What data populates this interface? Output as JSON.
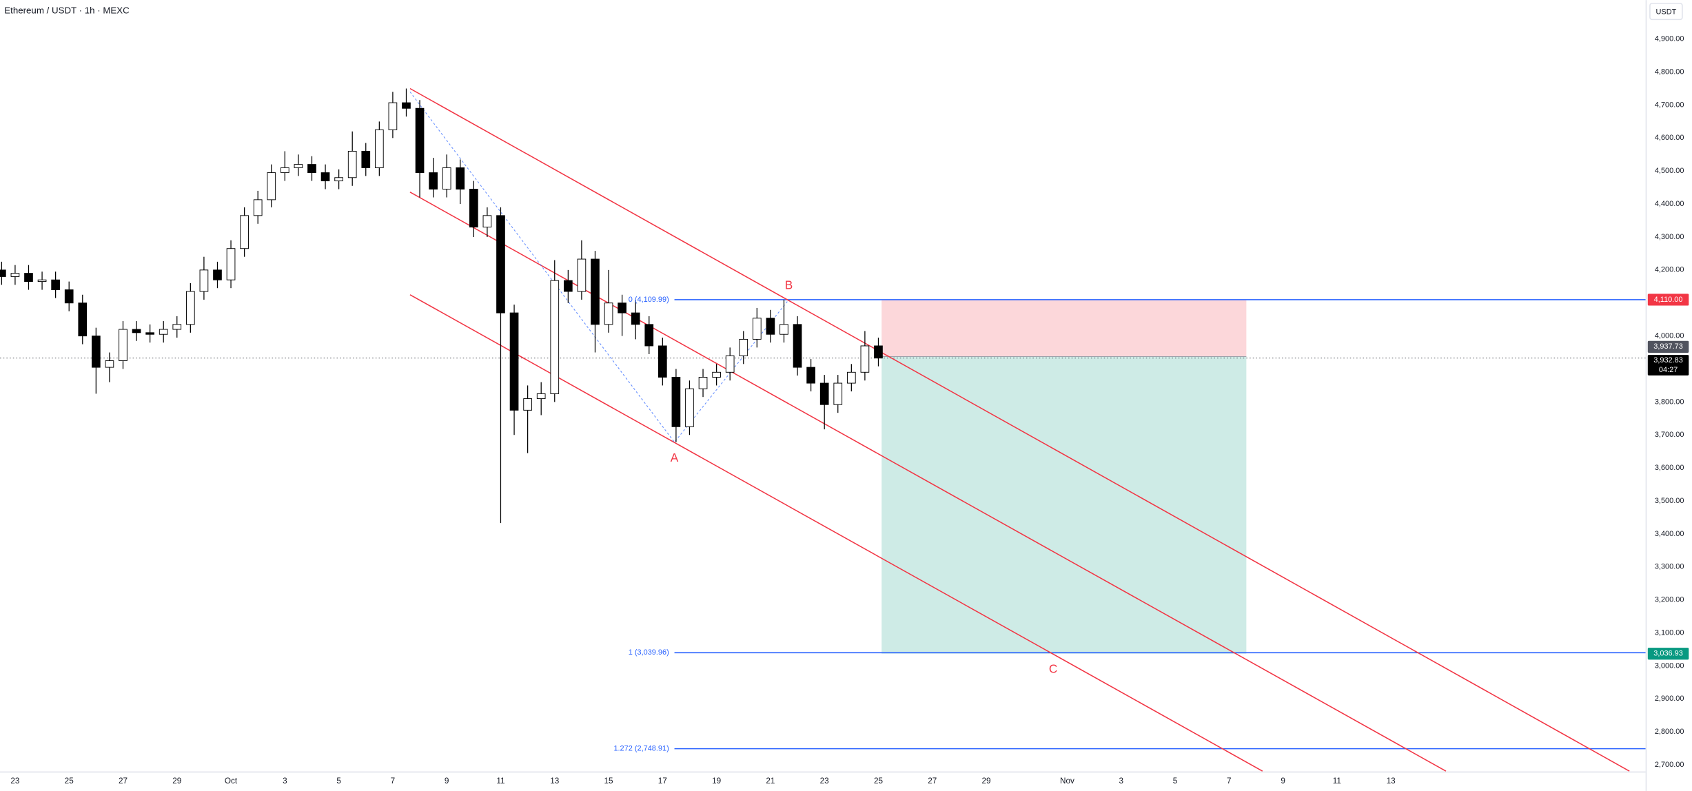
{
  "chart_data": {
    "type": "candlestick",
    "title": "Ethereum / USDT · 1h · MEXC",
    "currency_button": "USDT",
    "x": [
      22.5,
      23,
      23.5,
      24,
      24.5,
      25,
      25.5,
      26,
      26.5,
      27,
      27.5,
      28,
      28.5,
      29,
      29.5,
      30,
      30.5,
      31,
      31.5,
      32,
      32.5,
      33,
      33.5,
      34,
      34.5,
      35,
      35.5,
      36,
      36.5,
      37,
      37.5,
      38,
      38.5,
      39,
      39.5,
      40,
      40.5,
      41,
      41.5,
      42,
      42.5,
      43,
      43.5,
      44,
      44.5,
      45,
      45.5,
      46,
      46.5,
      47,
      47.5,
      48,
      48.5,
      49,
      49.5,
      50,
      50.5,
      51,
      51.5,
      52,
      52.5,
      53,
      53.5,
      54,
      54.5,
      55
    ],
    "open": [
      4200,
      4180,
      4190,
      4165,
      4170,
      4140,
      4100,
      4000,
      3905,
      3925,
      4020,
      4010,
      4005,
      4020,
      4035,
      4135,
      4200,
      4170,
      4265,
      4365,
      4413,
      4495,
      4510,
      4520,
      4495,
      4470,
      4480,
      4560,
      4510,
      4625,
      4707,
      4690,
      4495,
      4445,
      4510,
      4445,
      4330,
      4365,
      4070,
      3775,
      3810,
      3825,
      4168,
      4135,
      4233,
      4035,
      4100,
      4070,
      4035,
      3970,
      3875,
      3725,
      3840,
      3875,
      3890,
      3940,
      3990,
      4054,
      4005,
      4035,
      3905,
      3857,
      3792,
      3857,
      3890,
      3970
    ],
    "high": [
      4225,
      4215,
      4215,
      4195,
      4195,
      4165,
      4125,
      4025,
      3950,
      4045,
      4045,
      4035,
      4045,
      4060,
      4160,
      4240,
      4225,
      4290,
      4390,
      4440,
      4520,
      4560,
      4550,
      4545,
      4520,
      4505,
      4620,
      4585,
      4650,
      4740,
      4750,
      4715,
      4540,
      4550,
      4535,
      4470,
      4390,
      4390,
      4095,
      3850,
      3860,
      4230,
      4200,
      4290,
      4258,
      4200,
      4125,
      4110,
      4060,
      3995,
      3900,
      3865,
      3900,
      3915,
      3965,
      4015,
      4085,
      4079,
      4110,
      4060,
      3930,
      3882,
      3882,
      3915,
      4015,
      3995
    ],
    "low": [
      4155,
      4155,
      4140,
      4140,
      4115,
      4075,
      3975,
      3825,
      3860,
      3900,
      3985,
      3980,
      3980,
      3995,
      4010,
      4110,
      4145,
      4145,
      4240,
      4340,
      4390,
      4470,
      4485,
      4470,
      4445,
      4445,
      4455,
      4485,
      4485,
      4600,
      4665,
      4420,
      4420,
      4420,
      4400,
      4300,
      4300,
      3433,
      3700,
      3645,
      3760,
      3800,
      4100,
      4110,
      3950,
      4010,
      4000,
      3990,
      3945,
      3850,
      3678,
      3700,
      3815,
      3850,
      3865,
      3915,
      3965,
      3980,
      3980,
      3880,
      3832,
      3717,
      3767,
      3832,
      3865,
      3908
    ],
    "close": [
      4180,
      4190,
      4165,
      4170,
      4140,
      4100,
      4000,
      3905,
      3925,
      4020,
      4010,
      4005,
      4020,
      4035,
      4135,
      4200,
      4170,
      4265,
      4365,
      4413,
      4495,
      4510,
      4520,
      4495,
      4470,
      4480,
      4560,
      4510,
      4625,
      4707,
      4690,
      4495,
      4445,
      4510,
      4445,
      4330,
      4365,
      4070,
      3775,
      3810,
      3825,
      4168,
      4135,
      4233,
      4035,
      4100,
      4070,
      4035,
      3970,
      3875,
      3725,
      3840,
      3875,
      3890,
      3940,
      3990,
      4054,
      4005,
      4035,
      3905,
      3857,
      3792,
      3857,
      3890,
      3970,
      3933
    ],
    "up_color": "#ffffff",
    "down_color": "#000000",
    "xlim": [
      22.44,
      83.44
    ],
    "ylim": [
      2680,
      5018
    ],
    "grid": false,
    "xticks": [
      {
        "value": 23,
        "label": "23"
      },
      {
        "value": 25,
        "label": "25"
      },
      {
        "value": 27,
        "label": "27"
      },
      {
        "value": 29,
        "label": "29"
      },
      {
        "value": 31,
        "label": "Oct"
      },
      {
        "value": 33,
        "label": "3"
      },
      {
        "value": 35,
        "label": "5"
      },
      {
        "value": 37,
        "label": "7"
      },
      {
        "value": 39,
        "label": "9"
      },
      {
        "value": 41,
        "label": "11"
      },
      {
        "value": 43,
        "label": "13"
      },
      {
        "value": 45,
        "label": "15"
      },
      {
        "value": 47,
        "label": "17"
      },
      {
        "value": 49,
        "label": "19"
      },
      {
        "value": 51,
        "label": "21"
      },
      {
        "value": 53,
        "label": "23"
      },
      {
        "value": 55,
        "label": "25"
      },
      {
        "value": 57,
        "label": "27"
      },
      {
        "value": 59,
        "label": "29"
      },
      {
        "value": 62,
        "label": "Nov"
      },
      {
        "value": 64,
        "label": "3"
      },
      {
        "value": 66,
        "label": "5"
      },
      {
        "value": 68,
        "label": "7"
      },
      {
        "value": 70,
        "label": "9"
      },
      {
        "value": 72,
        "label": "11"
      },
      {
        "value": 74,
        "label": "13"
      }
    ],
    "yticks": [
      {
        "value": 4900,
        "label": "4,900.00"
      },
      {
        "value": 4800,
        "label": "4,800.00"
      },
      {
        "value": 4700,
        "label": "4,700.00"
      },
      {
        "value": 4600,
        "label": "4,600.00"
      },
      {
        "value": 4500,
        "label": "4,500.00"
      },
      {
        "value": 4400,
        "label": "4,400.00"
      },
      {
        "value": 4300,
        "label": "4,300.00"
      },
      {
        "value": 4200,
        "label": "4,200.00"
      },
      {
        "value": 4000,
        "label": "4,000.00"
      },
      {
        "value": 3800,
        "label": "3,800.00"
      },
      {
        "value": 3700,
        "label": "3,700.00"
      },
      {
        "value": 3600,
        "label": "3,600.00"
      },
      {
        "value": 3500,
        "label": "3,500.00"
      },
      {
        "value": 3400,
        "label": "3,400.00"
      },
      {
        "value": 3300,
        "label": "3,300.00"
      },
      {
        "value": 3200,
        "label": "3,200.00"
      },
      {
        "value": 3100,
        "label": "3,100.00"
      },
      {
        "value": 3000,
        "label": "3,000.00"
      },
      {
        "value": 2900,
        "label": "2,900.00"
      },
      {
        "value": 2800,
        "label": "2,800.00"
      },
      {
        "value": 2700,
        "label": "2,700.00"
      }
    ],
    "trend_lines": {
      "color": "#f23645",
      "lines": [
        {
          "x": [
            37.64,
            82.84
          ],
          "y": [
            4750,
            2681
          ]
        },
        {
          "x": [
            37.64,
            76.04
          ],
          "y": [
            4436,
            2681
          ]
        },
        {
          "x": [
            37.64,
            69.24
          ],
          "y": [
            4125,
            2681
          ]
        }
      ]
    },
    "zigzag": {
      "color": "#2962ff",
      "x": [
        37.64,
        47.44,
        51.68
      ],
      "y": [
        4740,
        3678,
        4110
      ]
    },
    "fib": {
      "color": "#2962ff",
      "start": 47.44,
      "levels": [
        {
          "value": 4109.99,
          "label": "0 (4,109.99)"
        },
        {
          "value": 3039.96,
          "label": "1 (3,039.96)"
        },
        {
          "value": 2748.91,
          "label": "1.272 (2,748.91)"
        }
      ]
    },
    "wave_labels": {
      "color": "#f23645",
      "points": [
        {
          "text": "A",
          "x": 47.44,
          "y": 3629
        },
        {
          "text": "B",
          "x": 51.68,
          "y": 4152
        },
        {
          "text": "C",
          "x": 61.48,
          "y": 2988
        }
      ]
    },
    "position": {
      "start": 55.12,
      "end": 68.64,
      "stop": {
        "value": 4110,
        "label": "4,110.00"
      },
      "entry": {
        "value": 3937.73,
        "label": "3,937.73"
      },
      "target": {
        "value": 3036.93,
        "label": "3,036.93"
      }
    },
    "last_price": {
      "value": 3932.83,
      "label": "3,932.83"
    },
    "countdown": "04:27"
  }
}
